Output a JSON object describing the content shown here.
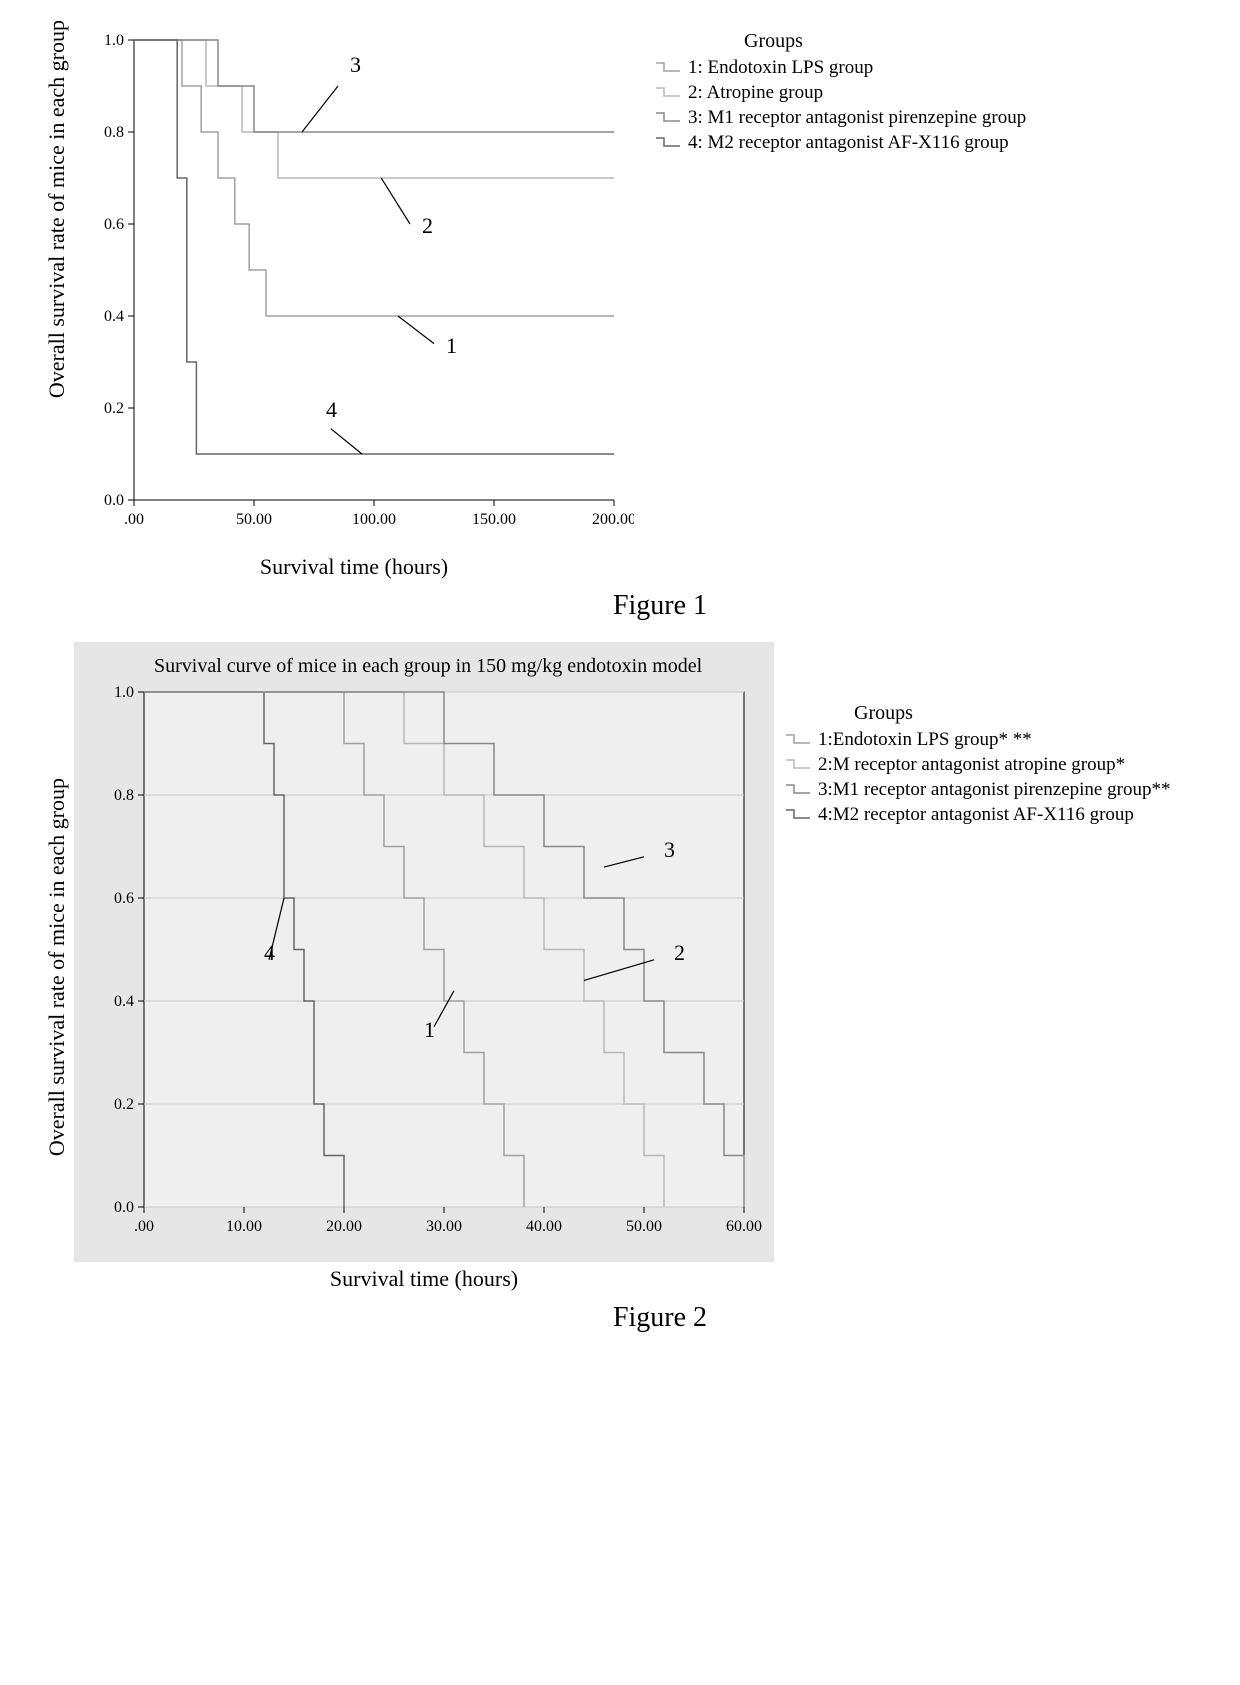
{
  "figure1": {
    "caption": "Figure 1",
    "ylabel": "Overall survival rate of mice in each group",
    "xlabel": "Survival time (hours)",
    "xlim": [
      0,
      200
    ],
    "ylim": [
      0,
      1.0
    ],
    "xticks": [
      0,
      50,
      100,
      150,
      200
    ],
    "xtick_labels": [
      ".00",
      "50.00",
      "100.00",
      "150.00",
      "200.00"
    ],
    "yticks": [
      0.0,
      0.2,
      0.4,
      0.6,
      0.8,
      1.0
    ],
    "ytick_labels": [
      "0.0",
      "0.2",
      "0.4",
      "0.6",
      "0.8",
      "1.0"
    ],
    "background_color": "#ffffff",
    "axis_color": "#000000",
    "legend_title": "Groups",
    "legend": [
      {
        "label": "1: Endotoxin LPS group",
        "color": "#a0a0a0"
      },
      {
        "label": "2: Atropine group",
        "color": "#b8b8b8"
      },
      {
        "label": "3: M1 receptor antagonist pirenzepine group",
        "color": "#888888"
      },
      {
        "label": "4: M2 receptor antagonist AF-X116 group",
        "color": "#666666"
      }
    ],
    "series": [
      {
        "id": "1",
        "color": "#a0a0a0",
        "points": [
          [
            0,
            1.0
          ],
          [
            20,
            1.0
          ],
          [
            20,
            0.9
          ],
          [
            28,
            0.9
          ],
          [
            28,
            0.8
          ],
          [
            35,
            0.8
          ],
          [
            35,
            0.7
          ],
          [
            42,
            0.7
          ],
          [
            42,
            0.6
          ],
          [
            48,
            0.6
          ],
          [
            48,
            0.5
          ],
          [
            55,
            0.5
          ],
          [
            55,
            0.4
          ],
          [
            200,
            0.4
          ]
        ]
      },
      {
        "id": "2",
        "color": "#b8b8b8",
        "points": [
          [
            0,
            1.0
          ],
          [
            30,
            1.0
          ],
          [
            30,
            0.9
          ],
          [
            45,
            0.9
          ],
          [
            45,
            0.8
          ],
          [
            60,
            0.8
          ],
          [
            60,
            0.7
          ],
          [
            200,
            0.7
          ]
        ]
      },
      {
        "id": "3",
        "color": "#888888",
        "points": [
          [
            0,
            1.0
          ],
          [
            35,
            1.0
          ],
          [
            35,
            0.9
          ],
          [
            50,
            0.9
          ],
          [
            50,
            0.8
          ],
          [
            200,
            0.8
          ]
        ]
      },
      {
        "id": "4",
        "color": "#666666",
        "points": [
          [
            0,
            1.0
          ],
          [
            18,
            1.0
          ],
          [
            18,
            0.7
          ],
          [
            22,
            0.7
          ],
          [
            22,
            0.3
          ],
          [
            26,
            0.3
          ],
          [
            26,
            0.1
          ],
          [
            200,
            0.1
          ]
        ]
      }
    ],
    "annotations": [
      {
        "text": "3",
        "tx": 90,
        "ty": 0.93,
        "lx1": 85,
        "ly1": 0.9,
        "lx2": 70,
        "ly2": 0.8
      },
      {
        "text": "2",
        "tx": 120,
        "ty": 0.58,
        "lx1": 115,
        "ly1": 0.6,
        "lx2": 103,
        "ly2": 0.7
      },
      {
        "text": "1",
        "tx": 130,
        "ty": 0.32,
        "lx1": 125,
        "ly1": 0.34,
        "lx2": 110,
        "ly2": 0.4
      },
      {
        "text": "4",
        "tx": 80,
        "ty": 0.18,
        "lx1": 82,
        "ly1": 0.155,
        "lx2": 95,
        "ly2": 0.1
      }
    ]
  },
  "figure2": {
    "caption": "Figure 2",
    "title": "Survival curve of mice in each group in 150 mg/kg endotoxin model",
    "ylabel": "Overall survival rate of mice in each group",
    "xlabel": "Survival time (hours)",
    "xlim": [
      0,
      60
    ],
    "ylim": [
      0,
      1.0
    ],
    "xticks": [
      0,
      10,
      20,
      30,
      40,
      50,
      60
    ],
    "xtick_labels": [
      ".00",
      "10.00",
      "20.00",
      "30.00",
      "40.00",
      "50.00",
      "60.00"
    ],
    "yticks": [
      0.0,
      0.2,
      0.4,
      0.6,
      0.8,
      1.0
    ],
    "ytick_labels": [
      "0.0",
      "0.2",
      "0.4",
      "0.6",
      "0.8",
      "1.0"
    ],
    "panel_bg": "#e6e6e6",
    "plot_bg": "#efefef",
    "grid_color": "#c8c8c8",
    "axis_color": "#000000",
    "legend_title": "Groups",
    "legend": [
      {
        "label": "1:Endotoxin LPS group* **",
        "color": "#a0a0a0"
      },
      {
        "label": "2:M receptor antagonist atropine group*",
        "color": "#b8b8b8"
      },
      {
        "label": "3:M1 receptor antagonist pirenzepine group**",
        "color": "#888888"
      },
      {
        "label": "4:M2 receptor antagonist AF-X116 group",
        "color": "#666666"
      }
    ],
    "series": [
      {
        "id": "4",
        "color": "#666666",
        "points": [
          [
            0,
            1.0
          ],
          [
            12,
            1.0
          ],
          [
            12,
            0.9
          ],
          [
            13,
            0.9
          ],
          [
            13,
            0.8
          ],
          [
            14,
            0.8
          ],
          [
            14,
            0.6
          ],
          [
            15,
            0.6
          ],
          [
            15,
            0.5
          ],
          [
            16,
            0.5
          ],
          [
            16,
            0.4
          ],
          [
            17,
            0.4
          ],
          [
            17,
            0.2
          ],
          [
            18,
            0.2
          ],
          [
            18,
            0.1
          ],
          [
            20,
            0.1
          ],
          [
            20,
            0.0
          ]
        ]
      },
      {
        "id": "1",
        "color": "#a0a0a0",
        "points": [
          [
            0,
            1.0
          ],
          [
            20,
            1.0
          ],
          [
            20,
            0.9
          ],
          [
            22,
            0.9
          ],
          [
            22,
            0.8
          ],
          [
            24,
            0.8
          ],
          [
            24,
            0.7
          ],
          [
            26,
            0.7
          ],
          [
            26,
            0.6
          ],
          [
            28,
            0.6
          ],
          [
            28,
            0.5
          ],
          [
            30,
            0.5
          ],
          [
            30,
            0.4
          ],
          [
            32,
            0.4
          ],
          [
            32,
            0.3
          ],
          [
            34,
            0.3
          ],
          [
            34,
            0.2
          ],
          [
            36,
            0.2
          ],
          [
            36,
            0.1
          ],
          [
            38,
            0.1
          ],
          [
            38,
            0.0
          ]
        ]
      },
      {
        "id": "2",
        "color": "#b8b8b8",
        "points": [
          [
            0,
            1.0
          ],
          [
            26,
            1.0
          ],
          [
            26,
            0.9
          ],
          [
            30,
            0.9
          ],
          [
            30,
            0.8
          ],
          [
            34,
            0.8
          ],
          [
            34,
            0.7
          ],
          [
            38,
            0.7
          ],
          [
            38,
            0.6
          ],
          [
            40,
            0.6
          ],
          [
            40,
            0.5
          ],
          [
            44,
            0.5
          ],
          [
            44,
            0.4
          ],
          [
            46,
            0.4
          ],
          [
            46,
            0.3
          ],
          [
            48,
            0.3
          ],
          [
            48,
            0.2
          ],
          [
            50,
            0.2
          ],
          [
            50,
            0.1
          ],
          [
            52,
            0.1
          ],
          [
            52,
            0.0
          ]
        ]
      },
      {
        "id": "3",
        "color": "#888888",
        "points": [
          [
            0,
            1.0
          ],
          [
            30,
            1.0
          ],
          [
            30,
            0.9
          ],
          [
            35,
            0.9
          ],
          [
            35,
            0.8
          ],
          [
            40,
            0.8
          ],
          [
            40,
            0.7
          ],
          [
            44,
            0.7
          ],
          [
            44,
            0.6
          ],
          [
            48,
            0.6
          ],
          [
            48,
            0.5
          ],
          [
            50,
            0.5
          ],
          [
            50,
            0.4
          ],
          [
            52,
            0.4
          ],
          [
            52,
            0.3
          ],
          [
            56,
            0.3
          ],
          [
            56,
            0.2
          ],
          [
            58,
            0.2
          ],
          [
            58,
            0.1
          ],
          [
            60,
            0.1
          ],
          [
            60,
            0.0
          ]
        ]
      }
    ],
    "annotations": [
      {
        "text": "4",
        "tx": 12,
        "ty": 0.48,
        "lx1": 12.5,
        "ly1": 0.48,
        "lx2": 14,
        "ly2": 0.6
      },
      {
        "text": "1",
        "tx": 28,
        "ty": 0.33,
        "lx1": 29,
        "ly1": 0.35,
        "lx2": 31,
        "ly2": 0.42
      },
      {
        "text": "3",
        "tx": 52,
        "ty": 0.68,
        "lx1": 50,
        "ly1": 0.68,
        "lx2": 46,
        "ly2": 0.66
      },
      {
        "text": "2",
        "tx": 53,
        "ty": 0.48,
        "lx1": 51,
        "ly1": 0.48,
        "lx2": 44,
        "ly2": 0.44
      }
    ]
  }
}
